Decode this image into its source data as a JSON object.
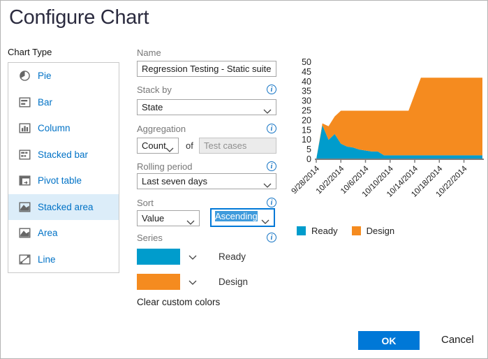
{
  "dialog": {
    "title": "Configure Chart",
    "ok_label": "OK",
    "cancel_label": "Cancel"
  },
  "chart_type": {
    "label": "Chart Type",
    "items": [
      {
        "label": "Pie",
        "icon": "pie-icon",
        "selected": false
      },
      {
        "label": "Bar",
        "icon": "bar-icon",
        "selected": false
      },
      {
        "label": "Column",
        "icon": "column-icon",
        "selected": false
      },
      {
        "label": "Stacked bar",
        "icon": "stacked-bar-icon",
        "selected": false
      },
      {
        "label": "Pivot table",
        "icon": "pivot-table-icon",
        "selected": false
      },
      {
        "label": "Stacked area",
        "icon": "stacked-area-icon",
        "selected": true
      },
      {
        "label": "Area",
        "icon": "area-icon",
        "selected": false
      },
      {
        "label": "Line",
        "icon": "line-icon",
        "selected": false
      }
    ]
  },
  "form": {
    "name": {
      "label": "Name",
      "value": "Regression Testing - Static suite - Ch"
    },
    "stack_by": {
      "label": "Stack by",
      "value": "State"
    },
    "aggregation": {
      "label": "Aggregation",
      "value": "Count",
      "of_label": "of",
      "field_value": "Test cases"
    },
    "rolling_period": {
      "label": "Rolling period",
      "value": "Last seven days"
    },
    "sort": {
      "label": "Sort",
      "field_value": "Value",
      "direction_value": "Ascending"
    },
    "series": {
      "label": "Series",
      "clear_label": "Clear custom colors"
    }
  },
  "colors": {
    "accent": "#0078D7",
    "link": "#0072C6",
    "selection": "#3F9BDC",
    "series_ready": "#009CCC",
    "series_design": "#F58B1F"
  },
  "chart_data": {
    "type": "area",
    "stacked": true,
    "title": "",
    "xlabel": "",
    "ylabel": "",
    "ylim": [
      0,
      50
    ],
    "y_ticks": [
      0,
      5,
      10,
      15,
      20,
      25,
      30,
      35,
      40,
      45,
      50
    ],
    "x_start_date": "9/28/2014",
    "x_tick_labels": [
      "9/28/2014",
      "10/2/2014",
      "10/6/2014",
      "10/10/2014",
      "10/14/2014",
      "10/18/2014",
      "10/22/2014"
    ],
    "x_tick_day_index": [
      0,
      4,
      8,
      12,
      16,
      20,
      24
    ],
    "grid": false,
    "legend_position": "bottom-left",
    "series": [
      {
        "name": "Ready",
        "color": "#009CCC",
        "values": [
          0,
          17.5,
          10,
          13,
          8,
          6.5,
          6,
          5,
          4.5,
          4,
          4,
          2,
          2,
          2,
          2,
          2,
          2,
          2,
          2,
          2,
          2,
          2,
          2,
          2,
          2,
          2,
          2,
          2
        ]
      },
      {
        "name": "Design",
        "color": "#F58B1F",
        "values": [
          0,
          1,
          7,
          9,
          17,
          18.5,
          19,
          20,
          20.5,
          21,
          21,
          23,
          23,
          23,
          23,
          23,
          31.5,
          40,
          40,
          40,
          40,
          40,
          40,
          40,
          40,
          40,
          40,
          40
        ]
      }
    ]
  }
}
